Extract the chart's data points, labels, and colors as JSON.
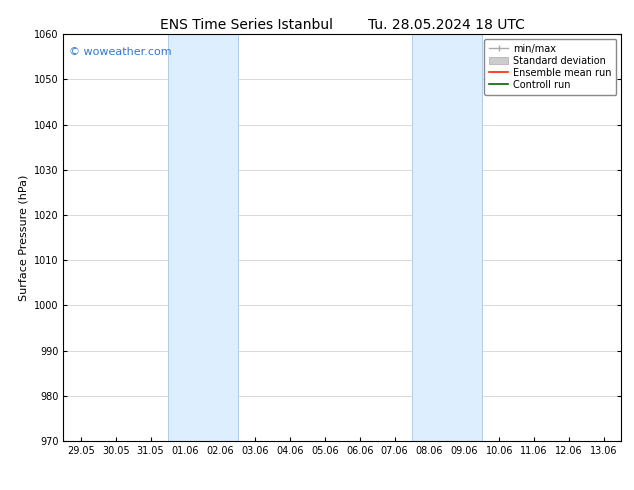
{
  "title_left": "ENS Time Series Istanbul",
  "title_right": "Tu. 28.05.2024 18 UTC",
  "ylabel": "Surface Pressure (hPa)",
  "ylim": [
    970,
    1060
  ],
  "yticks": [
    970,
    980,
    990,
    1000,
    1010,
    1020,
    1030,
    1040,
    1050,
    1060
  ],
  "xtick_labels": [
    "29.05",
    "30.05",
    "31.05",
    "01.06",
    "02.06",
    "03.06",
    "04.06",
    "05.06",
    "06.06",
    "07.06",
    "08.06",
    "09.06",
    "10.06",
    "11.06",
    "12.06",
    "13.06"
  ],
  "xtick_positions": [
    0,
    1,
    2,
    3,
    4,
    5,
    6,
    7,
    8,
    9,
    10,
    11,
    12,
    13,
    14,
    15
  ],
  "shaded_bands": [
    {
      "x_start": 3,
      "x_end": 5
    },
    {
      "x_start": 10,
      "x_end": 12
    }
  ],
  "shaded_color": "#ddeeff",
  "shaded_edge_color": "#b0ccee",
  "watermark_text": "© woweather.com",
  "watermark_color": "#3377cc",
  "background_color": "#ffffff",
  "grid_color": "#cccccc",
  "title_fontsize": 10,
  "tick_fontsize": 7,
  "ylabel_fontsize": 8,
  "legend_fontsize": 7
}
